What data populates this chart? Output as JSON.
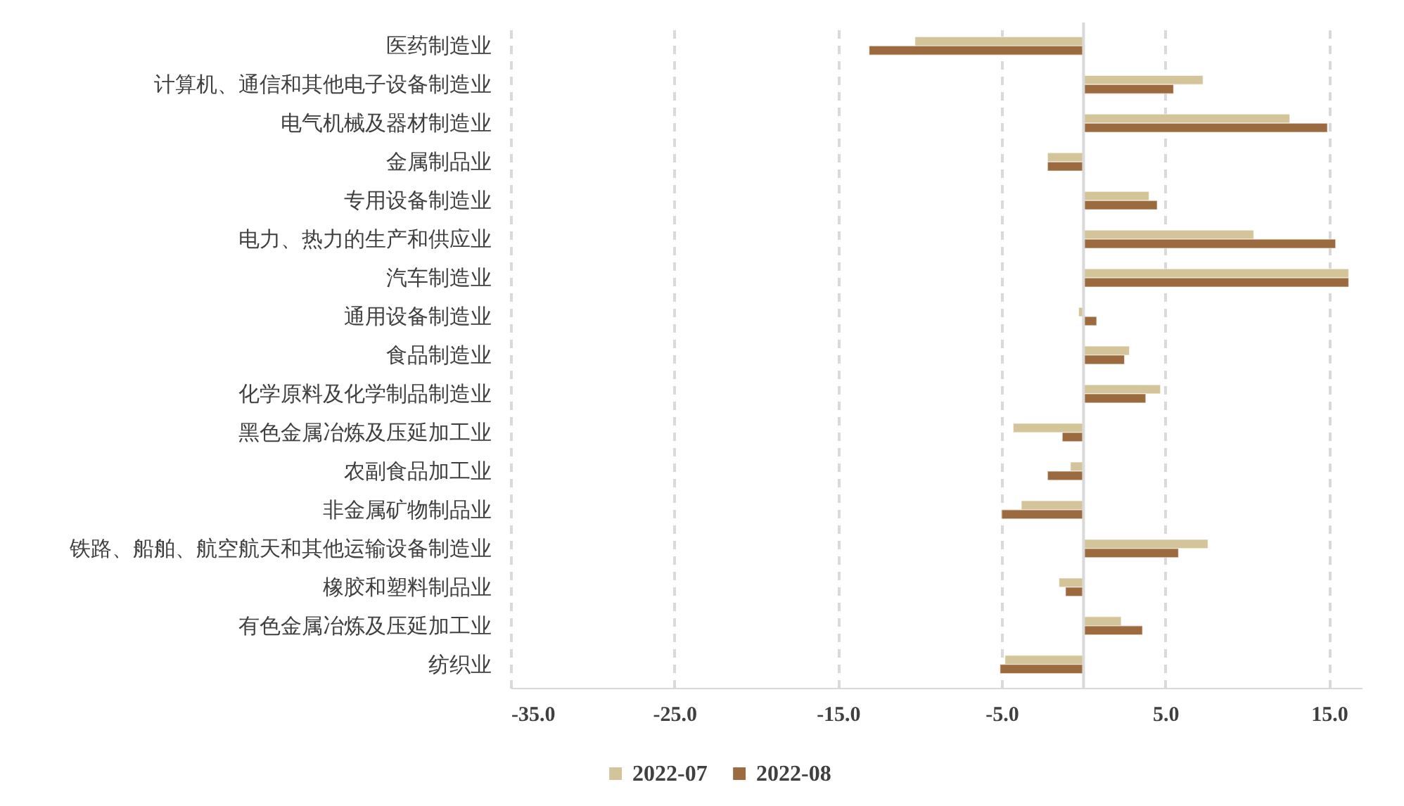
{
  "chart_data": {
    "type": "bar",
    "orientation": "horizontal",
    "categories": [
      "医药制造业",
      "计算机、通信和其他电子设备制造业",
      "电气机械及器材制造业",
      "金属制品业",
      "专用设备制造业",
      "电力、热力的生产和供应业",
      "汽车制造业",
      "通用设备制造业",
      "食品制造业",
      "化学原料及化学制品制造业",
      "黑色金属冶炼及压延加工业",
      "农副食品加工业",
      "非金属矿物制品业",
      "铁路、船舶、航空航天和其他运输设备制造业",
      "橡胶和塑料制品业",
      "有色金属冶炼及压延加工业",
      "纺织业"
    ],
    "series": [
      {
        "name": "2022-07",
        "color": "#d4c49a",
        "values": [
          -10.3,
          7.3,
          12.6,
          -2.2,
          4.0,
          10.4,
          16.2,
          -0.3,
          2.8,
          4.7,
          -4.3,
          -0.8,
          -3.8,
          7.6,
          -1.5,
          2.3,
          -4.8
        ]
      },
      {
        "name": "2022-08",
        "color": "#9b6a3f",
        "values": [
          -13.1,
          5.5,
          14.9,
          -2.2,
          4.5,
          15.4,
          16.2,
          0.8,
          2.5,
          3.8,
          -1.3,
          -2.2,
          -5.0,
          5.8,
          -1.1,
          3.6,
          -5.1
        ]
      }
    ],
    "xlim": [
      -35,
      17
    ],
    "xticks": [
      {
        "value": -35,
        "label": "-35.0"
      },
      {
        "value": -25,
        "label": "-25.0"
      },
      {
        "value": -15,
        "label": "-15.0"
      },
      {
        "value": -5,
        "label": "-5.0"
      },
      {
        "value": 5,
        "label": "5.0"
      },
      {
        "value": 15,
        "label": "15.0"
      }
    ],
    "grid": "x",
    "legend": "bottom"
  }
}
